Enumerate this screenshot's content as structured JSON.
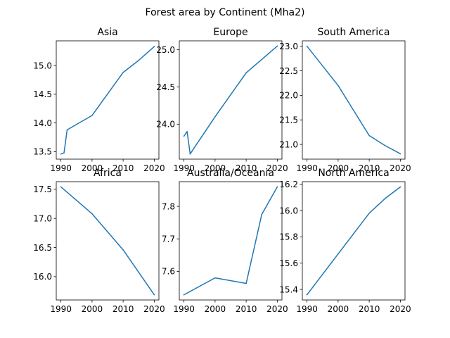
{
  "figure": {
    "title": "Forest area by Continent (Mha2)"
  },
  "chart_data": [
    {
      "type": "line",
      "title": "Asia",
      "xlabel": "",
      "ylabel": "",
      "x": [
        1990,
        1991,
        1992,
        2000,
        2010,
        2015,
        2020
      ],
      "y": [
        13.46,
        13.48,
        13.88,
        14.13,
        14.88,
        15.09,
        15.33
      ],
      "xlim": [
        1988.5,
        2021.5
      ],
      "ylim": [
        13.37,
        15.43
      ],
      "xticks": [
        "1990",
        "2000",
        "2010",
        "2020"
      ],
      "yticks": [
        "13.5",
        "14.0",
        "14.5",
        "15.0"
      ],
      "color": "#1f77b4",
      "grid": false
    },
    {
      "type": "line",
      "title": "Europe",
      "xlabel": "",
      "ylabel": "",
      "x": [
        1990,
        1991,
        1992,
        2000,
        2010,
        2015,
        2020
      ],
      "y": [
        23.84,
        23.9,
        23.6,
        24.1,
        24.69,
        24.87,
        25.05
      ],
      "xlim": [
        1988.5,
        2021.5
      ],
      "ylim": [
        23.53,
        25.12
      ],
      "xticks": [
        "1990",
        "2000",
        "2010",
        "2020"
      ],
      "yticks": [
        "24.0",
        "24.5",
        "25.0"
      ],
      "color": "#1f77b4",
      "grid": false
    },
    {
      "type": "line",
      "title": "South America",
      "xlabel": "",
      "ylabel": "",
      "x": [
        1990,
        2000,
        2010,
        2015,
        2020
      ],
      "y": [
        23.0,
        22.2,
        21.18,
        20.98,
        20.81
      ],
      "xlim": [
        1988.5,
        2021.5
      ],
      "ylim": [
        20.7,
        23.11
      ],
      "xticks": [
        "1990",
        "2000",
        "2010",
        "2020"
      ],
      "yticks": [
        "21.0",
        "21.5",
        "22.0",
        "22.5",
        "23.0"
      ],
      "color": "#1f77b4",
      "grid": false
    },
    {
      "type": "line",
      "title": "Africa",
      "xlabel": "",
      "ylabel": "",
      "x": [
        1990,
        2000,
        2010,
        2020
      ],
      "y": [
        17.54,
        17.08,
        16.46,
        15.69
      ],
      "xlim": [
        1988.5,
        2021.5
      ],
      "ylim": [
        15.6,
        17.63
      ],
      "xticks": [
        "1990",
        "2000",
        "2010",
        "2020"
      ],
      "yticks": [
        "16.0",
        "16.5",
        "17.0",
        "17.5"
      ],
      "color": "#1f77b4",
      "grid": false
    },
    {
      "type": "line",
      "title": "Australia/Oceania",
      "xlabel": "",
      "ylabel": "",
      "x": [
        1990,
        2000,
        2010,
        2015,
        2020
      ],
      "y": [
        7.528,
        7.58,
        7.563,
        7.775,
        7.86
      ],
      "xlim": [
        1988.5,
        2021.5
      ],
      "ylim": [
        7.512,
        7.876
      ],
      "xticks": [
        "1990",
        "2000",
        "2010",
        "2020"
      ],
      "yticks": [
        "7.6",
        "7.7",
        "7.8"
      ],
      "color": "#1f77b4",
      "grid": false
    },
    {
      "type": "line",
      "title": "North America",
      "xlabel": "",
      "ylabel": "",
      "x": [
        1990,
        2000,
        2010,
        2015,
        2020
      ],
      "y": [
        15.36,
        15.67,
        15.98,
        16.09,
        16.18
      ],
      "xlim": [
        1988.5,
        2021.5
      ],
      "ylim": [
        15.32,
        16.22
      ],
      "xticks": [
        "1990",
        "2000",
        "2010",
        "2020"
      ],
      "yticks": [
        "15.4",
        "15.6",
        "15.8",
        "16.0",
        "16.2"
      ],
      "color": "#1f77b4",
      "grid": false
    }
  ]
}
